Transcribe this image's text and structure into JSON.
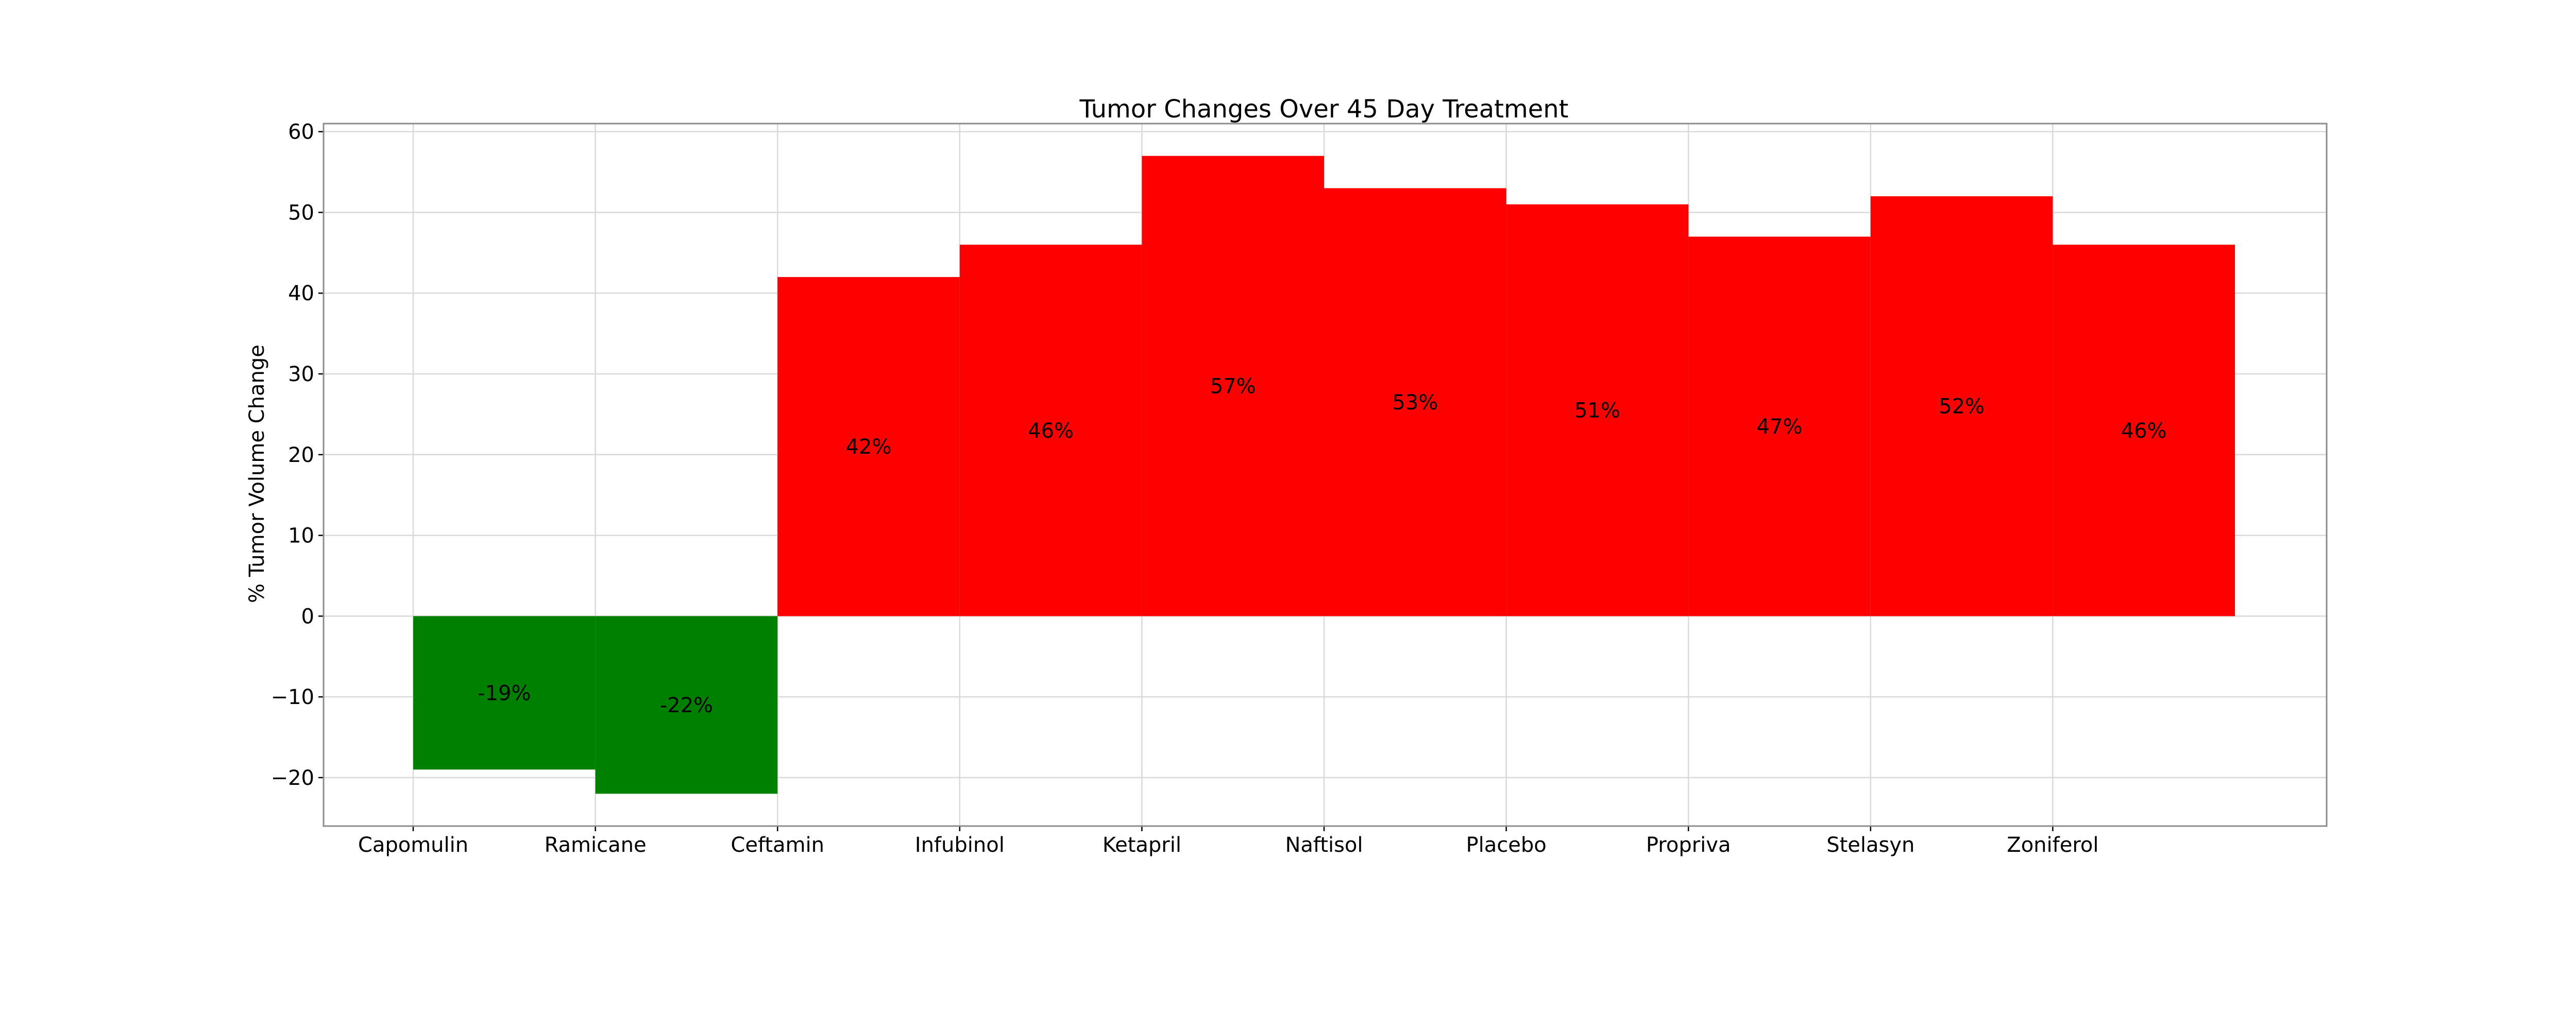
{
  "chart_data": {
    "type": "bar",
    "title": "Tumor Changes Over 45 Day Treatment",
    "xlabel": "",
    "ylabel": "% Tumor Volume Change",
    "categories": [
      "Capomulin",
      "Ramicane",
      "Ceftamin",
      "Infubinol",
      "Ketapril",
      "Naftisol",
      "Placebo",
      "Propriva",
      "Stelasyn",
      "Zoniferol"
    ],
    "values": [
      -19,
      -22,
      42,
      46,
      57,
      53,
      51,
      47,
      52,
      46
    ],
    "data_labels": [
      "-19%",
      "-22%",
      "42%",
      "46%",
      "57%",
      "53%",
      "51%",
      "47%",
      "52%",
      "46%"
    ],
    "ylim": [
      -26,
      61
    ],
    "yticks": [
      -20,
      -10,
      0,
      10,
      20,
      30,
      40,
      50,
      60
    ],
    "ytick_labels": [
      "−20",
      "−10",
      "0",
      "10",
      "20",
      "30",
      "40",
      "50",
      "60"
    ],
    "grid": true,
    "colors": {
      "positive": "#ff0000",
      "negative": "#008000",
      "grid": "#d9d9d9",
      "frame": "#8c8c8c"
    }
  }
}
